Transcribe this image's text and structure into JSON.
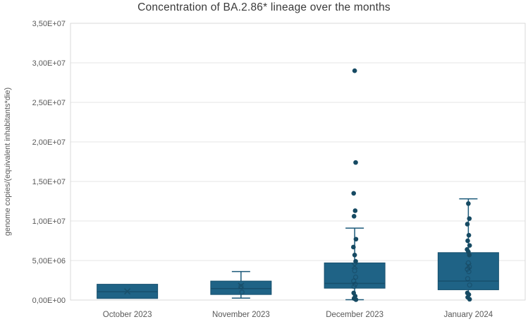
{
  "chart_data": {
    "type": "box",
    "title": "Concentration of BA.2.86* lineage over the months",
    "ylabel": "genome copies/(equivalent inhabitants*die)",
    "xlabel": "",
    "ylim": [
      0,
      35000000
    ],
    "grid": true,
    "yticks": [
      {
        "value": 0,
        "label": "0,00E+00"
      },
      {
        "value": 5000000,
        "label": "5,00E+06"
      },
      {
        "value": 10000000,
        "label": "1,00E+07"
      },
      {
        "value": 15000000,
        "label": "1,50E+07"
      },
      {
        "value": 20000000,
        "label": "2,00E+07"
      },
      {
        "value": 25000000,
        "label": "2,50E+07"
      },
      {
        "value": 30000000,
        "label": "3,00E+07"
      },
      {
        "value": 35000000,
        "label": "3,50E+07"
      }
    ],
    "categories": [
      "October 2023",
      "November 2023",
      "December 2023",
      "January 2024"
    ],
    "boxes": [
      {
        "category": "October 2023",
        "whisker_low": 200000,
        "q1": 200000,
        "median": 1050000,
        "q3": 2000000,
        "whisker_high": 2000000,
        "cap_low": false,
        "cap_high": false,
        "mean": 1100000,
        "points": [],
        "inner_points": []
      },
      {
        "category": "November 2023",
        "whisker_low": 250000,
        "q1": 700000,
        "median": 1450000,
        "q3": 2400000,
        "whisker_high": 3600000,
        "cap_low": true,
        "cap_high": true,
        "mean": 1800000,
        "points": [],
        "inner_points": [
          1700000,
          1000000
        ]
      },
      {
        "category": "December 2023",
        "whisker_low": 50000,
        "q1": 1500000,
        "median": 2100000,
        "q3": 4700000,
        "whisker_high": 9100000,
        "cap_low": true,
        "cap_high": true,
        "mean": 4300000,
        "points": [
          29000000,
          17400000,
          13500000,
          11300000,
          10600000,
          7700000,
          6700000,
          5700000,
          4900000,
          900000,
          500000,
          200000,
          50000
        ],
        "inner_points": [
          3700000,
          2900000,
          2400000,
          2000000,
          1700000
        ]
      },
      {
        "category": "January 2024",
        "whisker_low": 100000,
        "q1": 1300000,
        "median": 2400000,
        "q3": 6000000,
        "whisker_high": 12800000,
        "cap_low": false,
        "cap_high": true,
        "mean": 4300000,
        "points": [
          12200000,
          10300000,
          9600000,
          8200000,
          7500000,
          6900000,
          6400000,
          6100000,
          5700000,
          900000,
          700000,
          350000,
          100000
        ],
        "inner_points": [
          4700000,
          4200000,
          3900000,
          3600000,
          2700000,
          1900000
        ]
      }
    ],
    "colors": {
      "box_fill": "#1f6386",
      "box_border": "#17506e",
      "median_line": "#174f6d",
      "whisker": "#1c5a7a",
      "point": "#164a63",
      "inner_point_ring": "#123f56",
      "mean_marker": "#1a4f68",
      "gridline": "#e4e4e4",
      "plot_border": "#d9d9d9",
      "axis_line": "#bfbfbf",
      "tick_text": "#595959",
      "title_text": "#3a3a3a"
    }
  }
}
